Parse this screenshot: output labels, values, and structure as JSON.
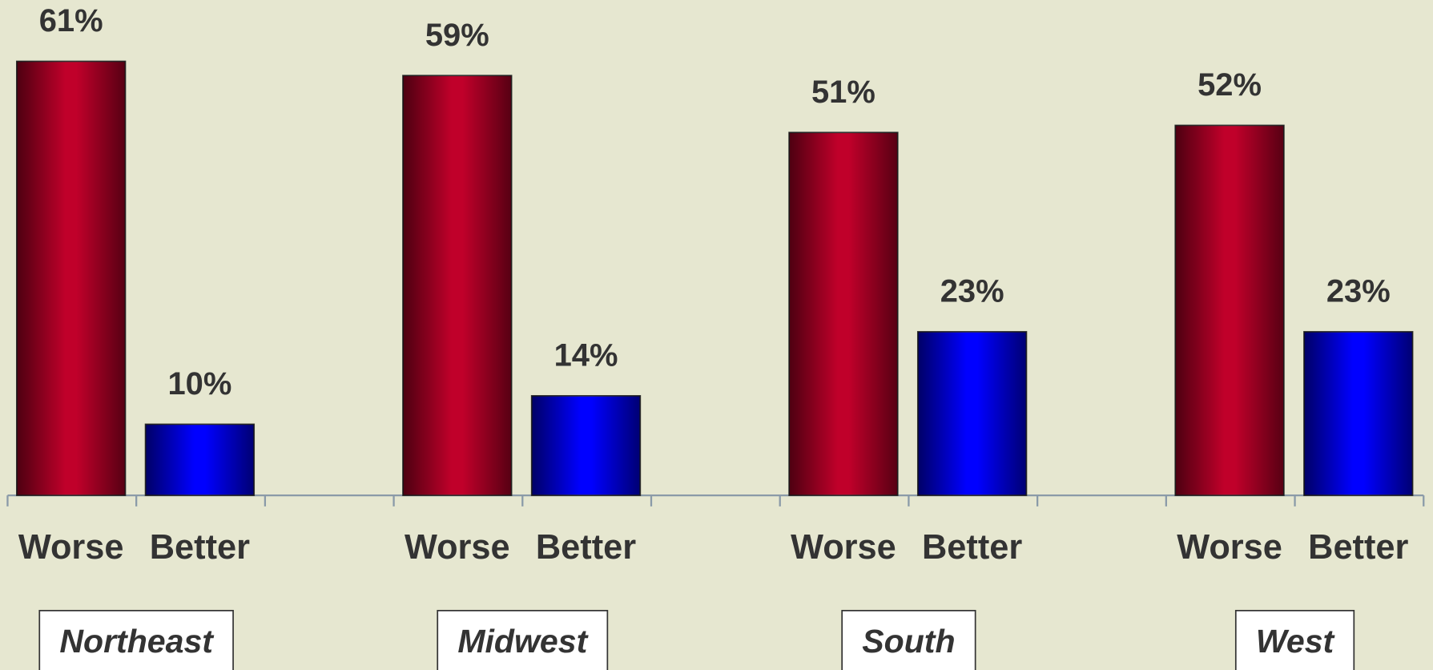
{
  "chart_data": {
    "type": "bar",
    "categories": [
      "Northeast",
      "Midwest",
      "South",
      "West"
    ],
    "series": [
      {
        "name": "Worse",
        "color": "#c0002a",
        "values": [
          61,
          59,
          51,
          52
        ],
        "value_labels": [
          "61%",
          "59%",
          "51%",
          "52%"
        ]
      },
      {
        "name": "Better",
        "color": "#0000ff",
        "values": [
          10,
          14,
          23,
          23
        ],
        "value_labels": [
          "10%",
          "14%",
          "23%",
          "23%"
        ]
      }
    ],
    "ylim": [
      0,
      70
    ]
  }
}
